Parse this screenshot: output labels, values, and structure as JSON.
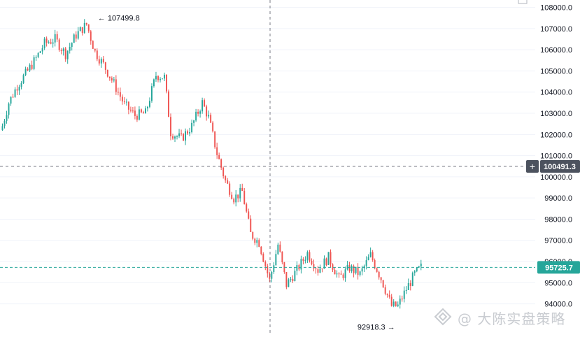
{
  "watermark": {
    "text": "@ 大陈实盘策略"
  },
  "colors": {
    "up": "#26a69a",
    "down": "#ef5350",
    "grid": "#f0f3fa",
    "crosshair": "#787b86",
    "current_price_line": "#26a69a",
    "crosshair_label_bg": "#4c525e",
    "current_price_bg": "#26a69a",
    "axis_text": "#131722"
  },
  "chart_data": {
    "type": "candlestick",
    "title": "",
    "xlabel": "",
    "ylabel": "",
    "y_ticks": [
      "94000.0",
      "95000.0",
      "96000.0",
      "97000.0",
      "98000.0",
      "99000.0",
      "100000.0",
      "101000.0",
      "102000.0",
      "103000.0",
      "104000.0",
      "105000.0",
      "106000.0",
      "107000.0",
      "108000.0"
    ],
    "ylim": [
      92600,
      108350
    ],
    "high_label": "107499.8",
    "high_value": 107499.8,
    "low_label": "92918.3",
    "low_value": 92918.3,
    "crosshair_price_label": "100491.3",
    "crosshair_price": 100491.3,
    "current_price_label": "95725.7",
    "current_price": 95725.7,
    "grid": true,
    "candle_count": 200,
    "close_path": [
      [
        0,
        102400
      ],
      [
        3,
        103500
      ],
      [
        7,
        104300
      ],
      [
        12,
        105000
      ],
      [
        16,
        105600
      ],
      [
        20,
        106300
      ],
      [
        25,
        106500
      ],
      [
        30,
        105800
      ],
      [
        35,
        106700
      ],
      [
        40,
        107200
      ],
      [
        44,
        105900
      ],
      [
        48,
        105300
      ],
      [
        53,
        104400
      ],
      [
        58,
        103400
      ],
      [
        63,
        102900
      ],
      [
        68,
        103000
      ],
      [
        73,
        104800
      ],
      [
        77,
        104700
      ],
      [
        80,
        102100
      ],
      [
        85,
        101800
      ],
      [
        90,
        102400
      ],
      [
        95,
        103500
      ],
      [
        98,
        102800
      ],
      [
        102,
        101100
      ],
      [
        106,
        99800
      ],
      [
        110,
        99000
      ],
      [
        114,
        99300
      ],
      [
        118,
        97300
      ],
      [
        122,
        96900
      ],
      [
        127,
        95100
      ],
      [
        131,
        96800
      ],
      [
        135,
        94900
      ],
      [
        140,
        95600
      ],
      [
        145,
        96400
      ],
      [
        150,
        95600
      ],
      [
        155,
        96200
      ],
      [
        160,
        95200
      ],
      [
        165,
        95700
      ],
      [
        170,
        95400
      ],
      [
        175,
        96300
      ],
      [
        180,
        95200
      ],
      [
        185,
        93900
      ],
      [
        188,
        93900
      ],
      [
        192,
        94700
      ],
      [
        196,
        95400
      ],
      [
        199,
        95726
      ]
    ]
  }
}
